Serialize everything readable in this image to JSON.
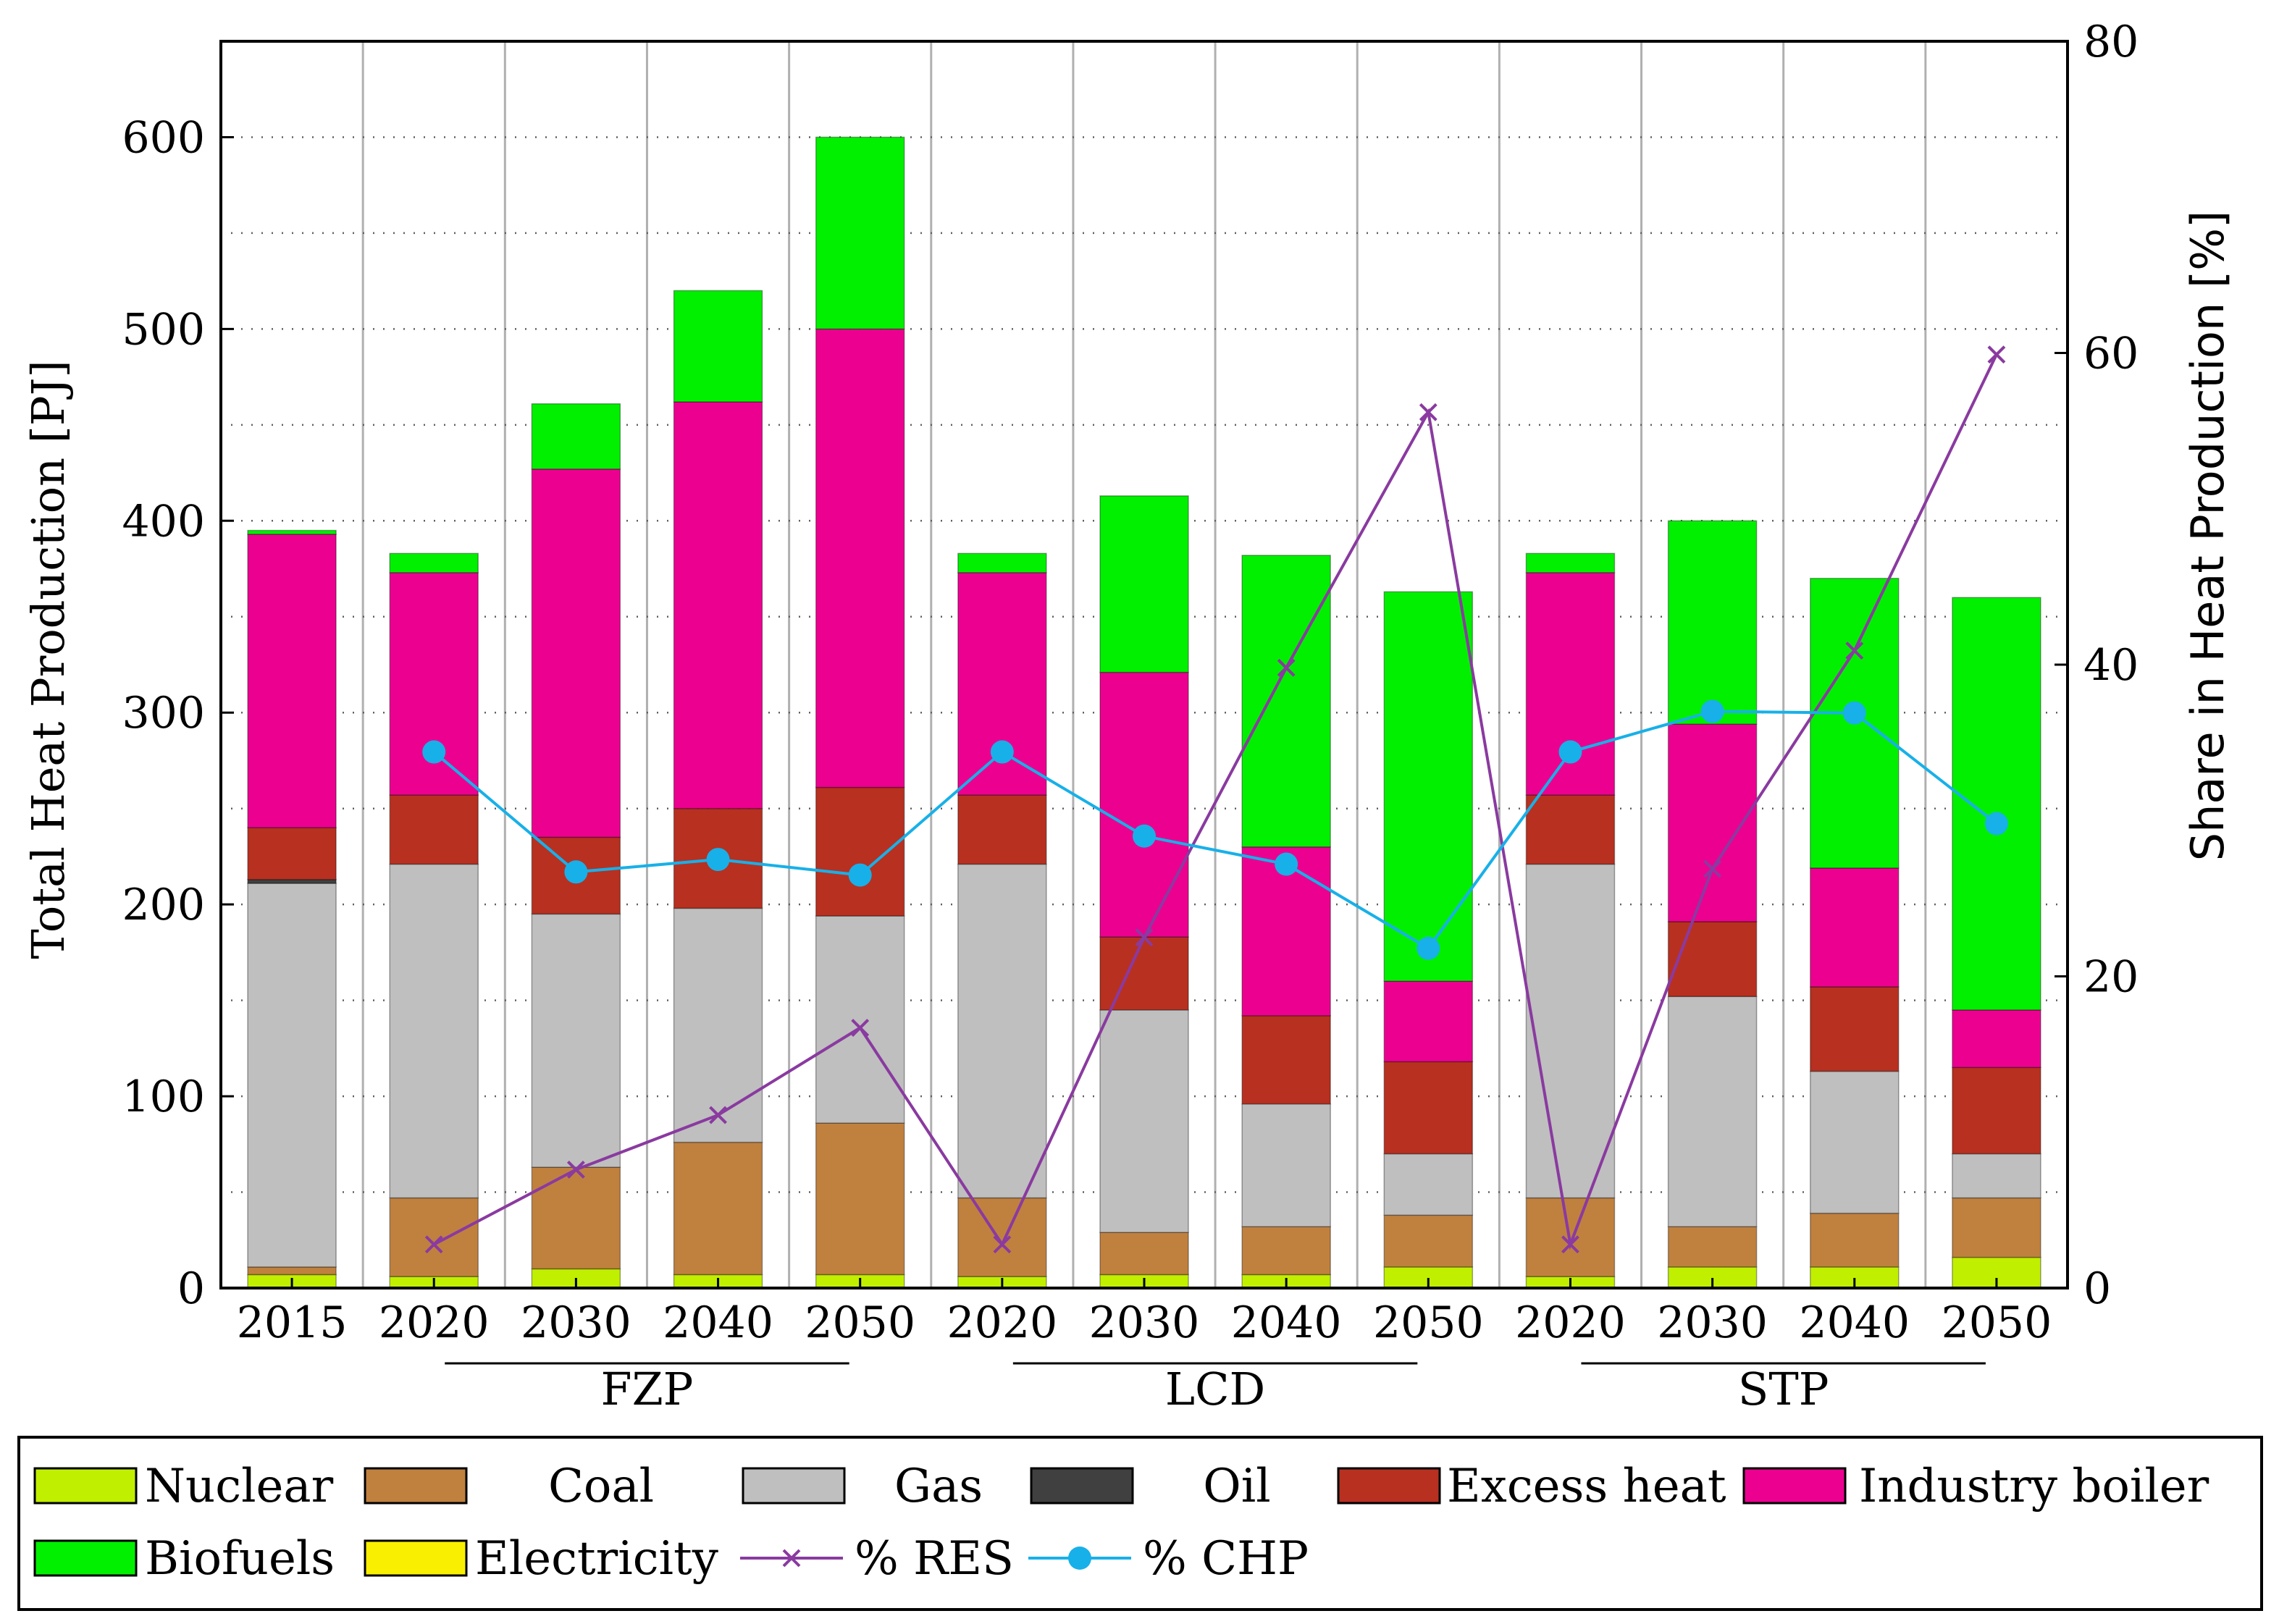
{
  "chart_data": {
    "type": "bar",
    "stacked": true,
    "ylabel": "Total Heat Production [PJ]",
    "y2label": "Share in Heat Production [%]",
    "ylim": [
      0,
      650
    ],
    "y2lim": [
      0,
      80
    ],
    "yticks": [
      0,
      100,
      200,
      300,
      400,
      500,
      600
    ],
    "y2ticks": [
      0,
      20,
      40,
      60,
      80
    ],
    "grid": true,
    "legend": "bottom",
    "categories": [
      "2015",
      "2020",
      "2030",
      "2040",
      "2050",
      "2020",
      "2030",
      "2040",
      "2050",
      "2020",
      "2030",
      "2040",
      "2050"
    ],
    "groups": [
      {
        "label": "FZP",
        "from": 1,
        "to": 4
      },
      {
        "label": "LCD",
        "from": 5,
        "to": 8
      },
      {
        "label": "STP",
        "from": 9,
        "to": 12
      }
    ],
    "series": [
      {
        "name": "Nuclear",
        "color": "#c0f000",
        "values": [
          7,
          6,
          10,
          7,
          7,
          6,
          7,
          7,
          11,
          6,
          11,
          11,
          16
        ]
      },
      {
        "name": "Coal",
        "color": "#c0813f",
        "values": [
          4,
          41,
          53,
          69,
          79,
          41,
          22,
          25,
          27,
          41,
          21,
          28,
          31
        ]
      },
      {
        "name": "Gas",
        "color": "#bfbfbf",
        "values": [
          200,
          174,
          132,
          122,
          108,
          174,
          116,
          64,
          32,
          174,
          120,
          74,
          23
        ]
      },
      {
        "name": "Oil",
        "color": "#404040",
        "values": [
          2,
          0,
          0,
          0,
          0,
          0,
          0,
          0,
          0,
          0,
          0,
          0,
          0
        ]
      },
      {
        "name": "Excess heat",
        "color": "#b83020",
        "values": [
          27,
          36,
          40,
          52,
          67,
          36,
          38,
          46,
          48,
          36,
          39,
          44,
          45
        ]
      },
      {
        "name": "Industry boiler",
        "color": "#ec0090",
        "values": [
          153,
          116,
          192,
          212,
          239,
          116,
          138,
          88,
          42,
          116,
          103,
          62,
          30
        ]
      },
      {
        "name": "Biofuels",
        "color": "#00f000",
        "values": [
          2,
          10,
          34,
          58,
          100,
          10,
          92,
          152,
          203,
          10,
          106,
          151,
          215
        ]
      },
      {
        "name": "Electricity",
        "color": "#f8f000",
        "values": [
          0,
          0,
          0,
          0,
          0,
          0,
          0,
          0,
          0,
          0,
          0,
          0,
          0
        ]
      }
    ],
    "lines": [
      {
        "name": "% RES",
        "color": "#8a3aa0",
        "marker": "x",
        "axis": "y2",
        "values": [
          null,
          2.8,
          7.6,
          11.1,
          16.7,
          2.8,
          22.5,
          39.8,
          56.2,
          2.8,
          26.9,
          40.9,
          59.9
        ]
      },
      {
        "name": "% CHP",
        "color": "#18b0e8",
        "marker": "circle",
        "axis": "y2",
        "values": [
          null,
          34.4,
          26.7,
          27.5,
          26.5,
          34.4,
          29.0,
          27.2,
          21.8,
          34.4,
          37.0,
          36.9,
          29.8
        ]
      }
    ]
  },
  "legend": {
    "items": [
      {
        "label": "Nuclear",
        "color": "#c0f000",
        "kind": "box"
      },
      {
        "label": "Coal",
        "color": "#c0813f",
        "kind": "box"
      },
      {
        "label": "Gas",
        "color": "#bfbfbf",
        "kind": "box"
      },
      {
        "label": "Oil",
        "color": "#404040",
        "kind": "box"
      },
      {
        "label": "Excess heat",
        "color": "#b83020",
        "kind": "box"
      },
      {
        "label": "Industry boiler",
        "color": "#ec0090",
        "kind": "box"
      },
      {
        "label": "Biofuels",
        "color": "#00f000",
        "kind": "box"
      },
      {
        "label": "Electricity",
        "color": "#f8f000",
        "kind": "box"
      },
      {
        "label": "% RES",
        "color": "#8a3aa0",
        "kind": "line-x"
      },
      {
        "label": "% CHP",
        "color": "#18b0e8",
        "kind": "line-circle"
      }
    ]
  }
}
